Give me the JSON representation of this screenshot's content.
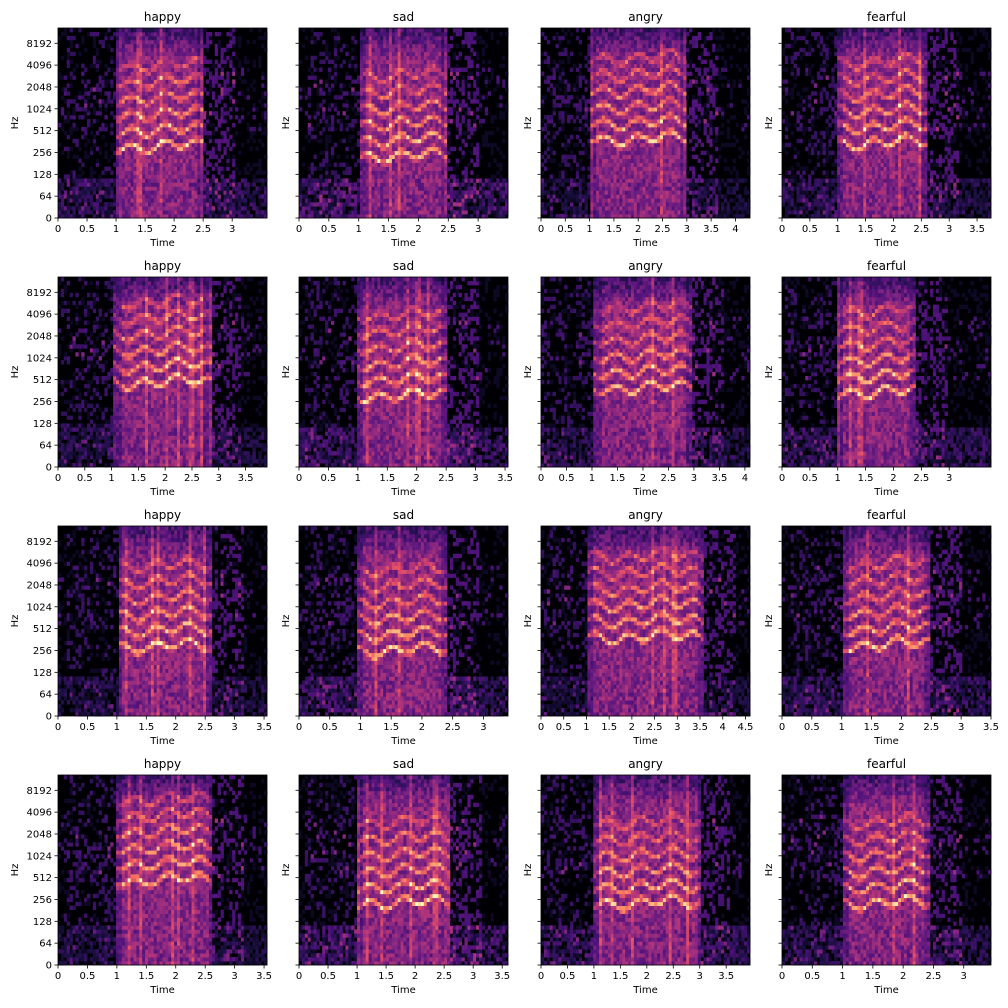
{
  "chart_data": {
    "type": "heatmap",
    "subtype": "mel-spectrogram",
    "layout": {
      "rows": 4,
      "cols": 4
    },
    "colormap": "magma",
    "shared_y_ticks": [
      "0",
      "64",
      "128",
      "256",
      "512",
      "1024",
      "2048",
      "4096",
      "8192"
    ],
    "grid": false,
    "panels": [
      {
        "title": "happy",
        "xlabel": "Time",
        "ylabel": "Hz",
        "duration": 3.6,
        "xticks": [
          "0",
          "0.5",
          "1",
          "1.5",
          "2",
          "2.5",
          "3"
        ],
        "onset": 1.0,
        "offset": 2.5,
        "f0_level": 0.38,
        "speech_noise": 0.45
      },
      {
        "title": "sad",
        "xlabel": "Time",
        "ylabel": "Hz",
        "duration": 3.5,
        "xticks": [
          "0",
          "0.5",
          "1",
          "1.5",
          "2",
          "2.5",
          "3"
        ],
        "onset": 1.02,
        "offset": 2.5,
        "f0_level": 0.33,
        "speech_noise": 0.6
      },
      {
        "title": "angry",
        "xlabel": "Time",
        "ylabel": "Hz",
        "duration": 4.3,
        "xticks": [
          "0",
          "0.5",
          "1",
          "1.5",
          "2",
          "2.5",
          "3",
          "3.5",
          "4"
        ],
        "onset": 1.0,
        "offset": 3.0,
        "f0_level": 0.42,
        "speech_noise": 0.3
      },
      {
        "title": "fearful",
        "xlabel": "Time",
        "ylabel": "Hz",
        "duration": 3.75,
        "xticks": [
          "0",
          "0.5",
          "1",
          "1.5",
          "2",
          "2.5",
          "3",
          "3.5"
        ],
        "onset": 1.0,
        "offset": 2.6,
        "f0_level": 0.4,
        "speech_noise": 0.4
      },
      {
        "title": "happy",
        "xlabel": "Time",
        "ylabel": "Hz",
        "duration": 3.9,
        "xticks": [
          "0",
          "0.5",
          "1",
          "1.5",
          "2",
          "2.5",
          "3",
          "3.5"
        ],
        "onset": 1.05,
        "offset": 2.85,
        "f0_level": 0.45,
        "speech_noise": 0.35
      },
      {
        "title": "sad",
        "xlabel": "Time",
        "ylabel": "Hz",
        "duration": 3.55,
        "xticks": [
          "0",
          "0.5",
          "1",
          "1.5",
          "2",
          "2.5",
          "3",
          "3.5"
        ],
        "onset": 1.0,
        "offset": 2.5,
        "f0_level": 0.38,
        "speech_noise": 0.5
      },
      {
        "title": "angry",
        "xlabel": "Time",
        "ylabel": "Hz",
        "duration": 4.1,
        "xticks": [
          "0",
          "0.5",
          "1",
          "1.5",
          "2",
          "2.5",
          "3",
          "3.5",
          "4"
        ],
        "onset": 1.05,
        "offset": 2.95,
        "f0_level": 0.42,
        "speech_noise": 0.4
      },
      {
        "title": "fearful",
        "xlabel": "Time",
        "ylabel": "Hz",
        "duration": 3.75,
        "xticks": [
          "0",
          "0.5",
          "1",
          "1.5",
          "2",
          "2.5",
          "3"
        ],
        "onset": 1.0,
        "offset": 2.4,
        "f0_level": 0.4,
        "speech_noise": 0.45
      },
      {
        "title": "happy",
        "xlabel": "Time",
        "ylabel": "Hz",
        "duration": 3.55,
        "xticks": [
          "0",
          "0.5",
          "1",
          "1.5",
          "2",
          "2.5",
          "3",
          "3.5"
        ],
        "onset": 1.05,
        "offset": 2.6,
        "f0_level": 0.37,
        "speech_noise": 0.35
      },
      {
        "title": "sad",
        "xlabel": "Time",
        "ylabel": "Hz",
        "duration": 3.4,
        "xticks": [
          "0",
          "0.5",
          "1",
          "1.5",
          "2",
          "2.5",
          "3"
        ],
        "onset": 0.95,
        "offset": 2.4,
        "f0_level": 0.35,
        "speech_noise": 0.5
      },
      {
        "title": "angry",
        "xlabel": "Time",
        "ylabel": "Hz",
        "duration": 4.6,
        "xticks": [
          "0",
          "0.5",
          "1",
          "1.5",
          "2",
          "2.5",
          "3",
          "3.5",
          "4",
          "4.5"
        ],
        "onset": 1.0,
        "offset": 3.6,
        "f0_level": 0.42,
        "speech_noise": 0.3
      },
      {
        "title": "fearful",
        "xlabel": "Time",
        "ylabel": "Hz",
        "duration": 3.5,
        "xticks": [
          "0",
          "0.5",
          "1",
          "1.5",
          "2",
          "2.5",
          "3",
          "3.5"
        ],
        "onset": 1.0,
        "offset": 2.5,
        "f0_level": 0.38,
        "speech_noise": 0.45
      },
      {
        "title": "happy",
        "xlabel": "Time",
        "ylabel": "Hz",
        "duration": 3.55,
        "xticks": [
          "0",
          "0.5",
          "1",
          "1.5",
          "2",
          "2.5",
          "3",
          "3.5"
        ],
        "onset": 1.0,
        "offset": 2.6,
        "f0_level": 0.45,
        "speech_noise": 0.35
      },
      {
        "title": "sad",
        "xlabel": "Time",
        "ylabel": "Hz",
        "duration": 3.6,
        "xticks": [
          "0",
          "0.5",
          "1",
          "1.5",
          "2",
          "2.5",
          "3",
          "3.5"
        ],
        "onset": 1.0,
        "offset": 2.6,
        "f0_level": 0.33,
        "speech_noise": 0.55
      },
      {
        "title": "angry",
        "xlabel": "Time",
        "ylabel": "Hz",
        "duration": 3.95,
        "xticks": [
          "0",
          "0.5",
          "1",
          "1.5",
          "2",
          "2.5",
          "3",
          "3.5"
        ],
        "onset": 1.0,
        "offset": 3.0,
        "f0_level": 0.33,
        "speech_noise": 0.45
      },
      {
        "title": "fearful",
        "xlabel": "Time",
        "ylabel": "Hz",
        "duration": 3.45,
        "xticks": [
          "0",
          "0.5",
          "1",
          "1.5",
          "2",
          "2.5",
          "3"
        ],
        "onset": 1.0,
        "offset": 2.45,
        "f0_level": 0.33,
        "speech_noise": 0.4
      }
    ]
  }
}
